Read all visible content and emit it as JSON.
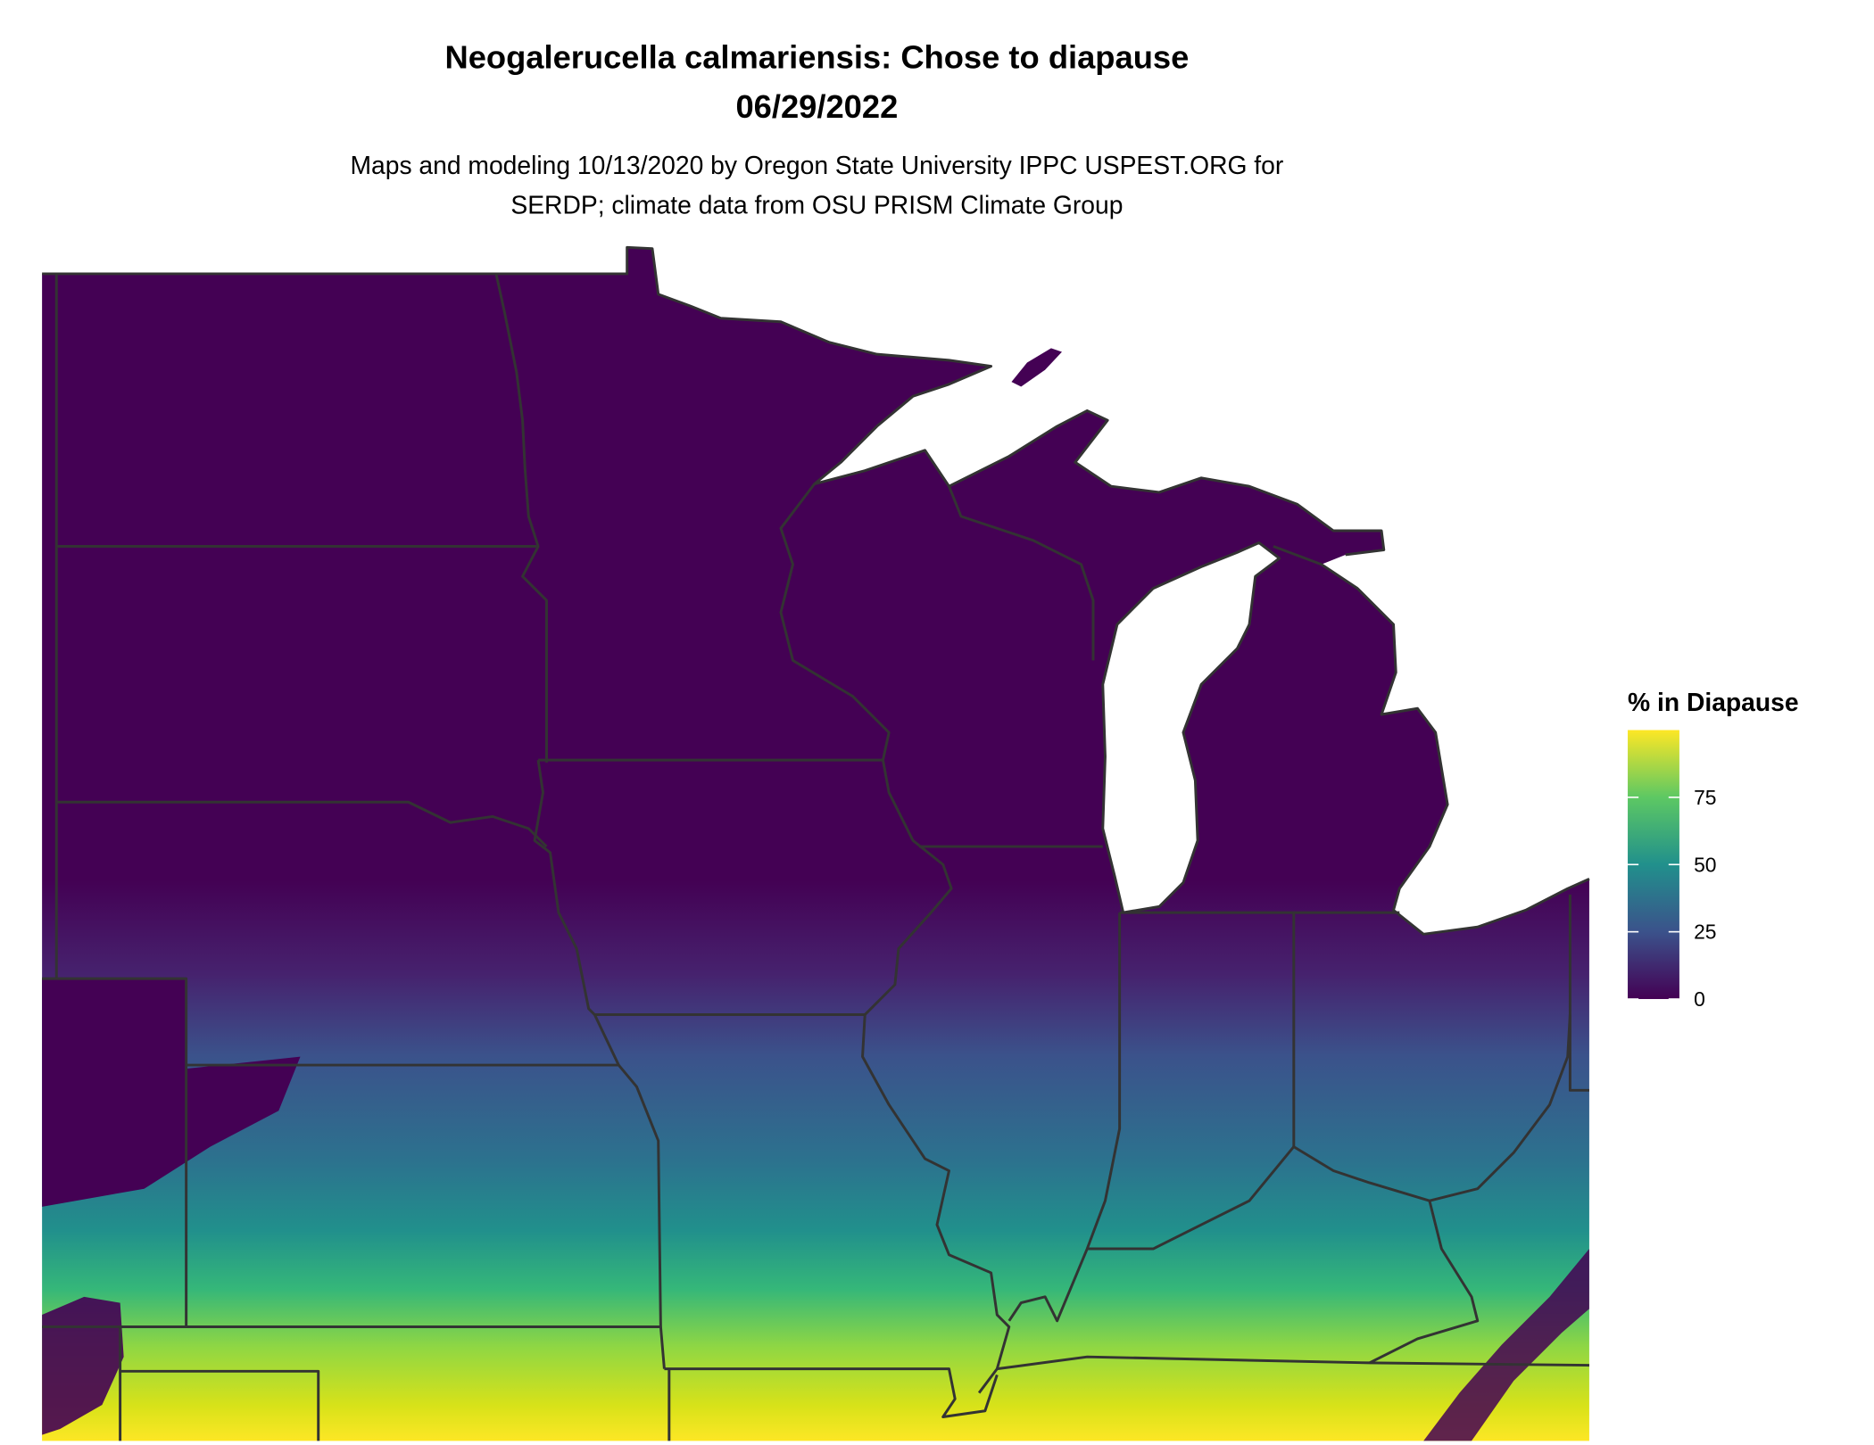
{
  "title": "Neogalerucella calmariensis: Chose to diapause",
  "date": "06/29/2022",
  "subtitle_line1": "Maps and modeling 10/13/2020 by Oregon State University IPPC USPEST.ORG for",
  "subtitle_line2": "SERDP; climate data from OSU PRISM Climate Group",
  "legend": {
    "title": "% in Diapause",
    "ticks": [
      "75",
      "50",
      "25",
      "0"
    ],
    "range": [
      0,
      100
    ],
    "colormap": "viridis",
    "colors": [
      "#440154",
      "#3b528b",
      "#21908c",
      "#5dc863",
      "#fde725"
    ]
  },
  "chart_data": {
    "type": "heatmap",
    "title": "Neogalerucella calmariensis: Chose to diapause",
    "subtitle": "06/29/2022",
    "region": "US Upper Midwest / Great Lakes",
    "value_label": "% in Diapause",
    "value_range": [
      0,
      100
    ],
    "pattern": "0% across north (ND, SD, MN, WI, MI, northern IA); rising southward to ~25 in northern MO/IL/IN/OH, ~50 in central MO/IL/IN, ~75 in southern MO/KY, ~100 along AR/TN/OK borders; low values in Appalachian highlands and western NE/KS"
  }
}
